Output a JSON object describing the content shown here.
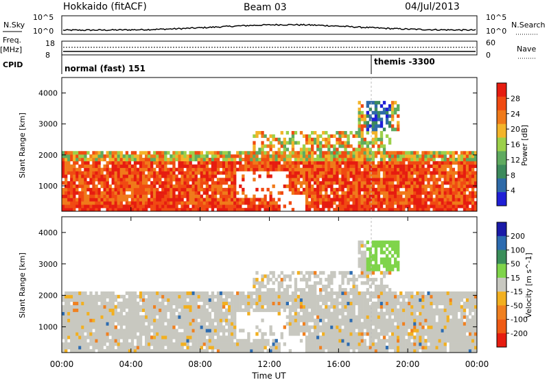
{
  "header": {
    "title": "Hokkaido (fitACF)",
    "beam": "Beam 03",
    "date": "04/Jul/2013"
  },
  "top_panels": {
    "nsky_label": "N.Sky",
    "nsky_ticks": [
      "10^5",
      "10^0"
    ],
    "nsearch_label": "N.Search",
    "nsearch_ticks": [
      "10^5",
      "10^0"
    ],
    "freq_label": "Freq.",
    "freq_unit": "[MHz]",
    "freq_ticks": [
      "18",
      "8"
    ],
    "nave_label": "Nave",
    "nave_ticks": [
      "60",
      "0"
    ],
    "cpid_label": "CPID",
    "cpid_entries": [
      {
        "label": "normal (fast) 151",
        "start_hour": 0.0
      },
      {
        "label": "themis -3300",
        "start_hour": 18.0
      }
    ]
  },
  "chart_data": [
    {
      "type": "heatmap",
      "name": "power",
      "ylabel": "Slant Range [km]",
      "ylim": [
        180,
        4500
      ],
      "yticks": [
        "1000",
        "2000",
        "3000",
        "4000"
      ],
      "colorbar_label": "Power [dB]",
      "colorbar_ticks": [
        "4",
        "8",
        "12",
        "16",
        "20",
        "24",
        "28"
      ],
      "colors": [
        "#1f1fd6",
        "#2e6aa8",
        "#3c8a5c",
        "#5faa5f",
        "#9cd04a",
        "#f3b42a",
        "#f07a1a",
        "#f04a12",
        "#e61c10"
      ]
    },
    {
      "type": "heatmap",
      "name": "velocity",
      "ylabel": "Slant Range [km]",
      "ylim": [
        180,
        4500
      ],
      "yticks": [
        "1000",
        "2000",
        "3000",
        "4000"
      ],
      "colorbar_label": "Velocity [m s^-1]",
      "colorbar_ticks": [
        "200",
        "100",
        "50",
        "15",
        "-15",
        "-50",
        "-100",
        "-200"
      ],
      "colors": [
        "#1a1aa8",
        "#2c6bb0",
        "#3a8e5a",
        "#7fd44a",
        "#c8c8c0",
        "#f2b020",
        "#f08020",
        "#ef5a14",
        "#e61c10"
      ]
    }
  ],
  "xaxis": {
    "label": "Time UT",
    "ticks": [
      "00:00",
      "04:00",
      "08:00",
      "12:00",
      "16:00",
      "20:00",
      "00:00"
    ]
  }
}
